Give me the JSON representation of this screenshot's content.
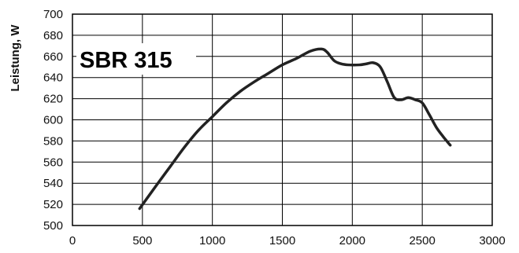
{
  "chart_data": {
    "type": "line",
    "title": "SBR 315",
    "xlabel": "",
    "ylabel": "Leistung, W",
    "xlim": [
      0,
      3000
    ],
    "ylim": [
      500,
      700
    ],
    "xticks": [
      0,
      500,
      1000,
      1500,
      2000,
      2500,
      3000
    ],
    "yticks": [
      500,
      520,
      540,
      560,
      580,
      600,
      620,
      640,
      660,
      680,
      700
    ],
    "grid": true,
    "series": [
      {
        "color": "#222222",
        "points": [
          [
            480,
            516
          ],
          [
            600,
            538
          ],
          [
            700,
            556
          ],
          [
            800,
            574
          ],
          [
            900,
            590
          ],
          [
            1000,
            603
          ],
          [
            1100,
            616
          ],
          [
            1200,
            627
          ],
          [
            1300,
            636
          ],
          [
            1400,
            644
          ],
          [
            1500,
            652
          ],
          [
            1600,
            658
          ],
          [
            1700,
            665
          ],
          [
            1780,
            667
          ],
          [
            1820,
            664
          ],
          [
            1870,
            656
          ],
          [
            1920,
            653
          ],
          [
            1970,
            652
          ],
          [
            2050,
            652
          ],
          [
            2100,
            653
          ],
          [
            2150,
            654
          ],
          [
            2200,
            650
          ],
          [
            2250,
            636
          ],
          [
            2300,
            621
          ],
          [
            2350,
            619
          ],
          [
            2400,
            621
          ],
          [
            2450,
            619
          ],
          [
            2500,
            616
          ],
          [
            2550,
            605
          ],
          [
            2600,
            593
          ],
          [
            2650,
            584
          ],
          [
            2700,
            576
          ]
        ]
      }
    ]
  }
}
